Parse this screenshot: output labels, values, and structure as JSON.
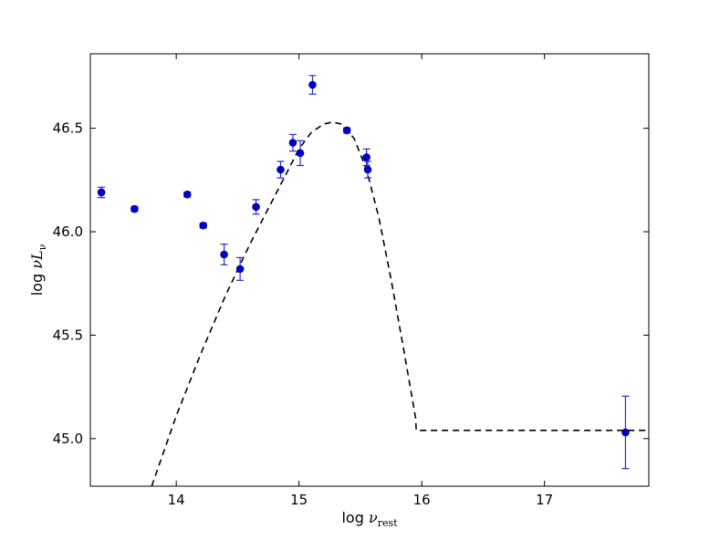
{
  "chart_data": {
    "type": "scatter",
    "xlabel": {
      "prefix": "log ",
      "symbol": "ν",
      "subscript": "rest"
    },
    "ylabel": {
      "prefix": "log ",
      "symbol": "νL",
      "subscript": "ν"
    },
    "xlim": [
      13.3,
      17.85
    ],
    "ylim": [
      44.77,
      46.86
    ],
    "xticks": [
      14,
      15,
      16,
      17
    ],
    "yticks": [
      45.0,
      45.5,
      46.0,
      46.5
    ],
    "xtick_labels": [
      "14",
      "15",
      "16",
      "17"
    ],
    "ytick_labels": [
      "45.0",
      "45.5",
      "46.0",
      "46.5"
    ],
    "grid": false,
    "marker_color": "#0000cc",
    "errorbar_color": "#2a2ad4",
    "model_color": "#000000",
    "series": [
      {
        "kind": "points",
        "x": [
          13.39,
          13.66,
          14.09,
          14.22,
          14.39,
          14.52,
          14.65,
          14.85,
          14.95,
          15.01,
          15.11,
          15.39,
          15.55,
          15.56
        ],
        "y": [
          46.19,
          46.11,
          46.18,
          46.03,
          45.89,
          45.82,
          46.12,
          46.3,
          46.43,
          46.38,
          46.71,
          46.49,
          46.36,
          46.3
        ],
        "yerr": [
          0.025,
          0.012,
          0.012,
          0.012,
          0.05,
          0.055,
          0.035,
          0.04,
          0.04,
          0.06,
          0.045,
          0.012,
          0.04,
          0.04
        ]
      },
      {
        "kind": "points",
        "x": [
          17.66
        ],
        "y": [
          45.03
        ],
        "yerr": [
          0.175
        ]
      },
      {
        "kind": "model-curve",
        "style": "dashed",
        "x": [
          13.8,
          14.0,
          14.2,
          14.4,
          14.6,
          14.8,
          15.0,
          15.1,
          15.2,
          15.27,
          15.35,
          15.45,
          15.55,
          15.65,
          15.75,
          15.85,
          15.95,
          15.955,
          17.85
        ],
        "y": [
          44.77,
          45.11,
          45.41,
          45.69,
          45.94,
          46.17,
          46.4,
          46.48,
          46.52,
          46.53,
          46.52,
          46.45,
          46.3,
          46.07,
          45.77,
          45.44,
          45.1,
          45.04,
          45.04
        ]
      }
    ]
  }
}
